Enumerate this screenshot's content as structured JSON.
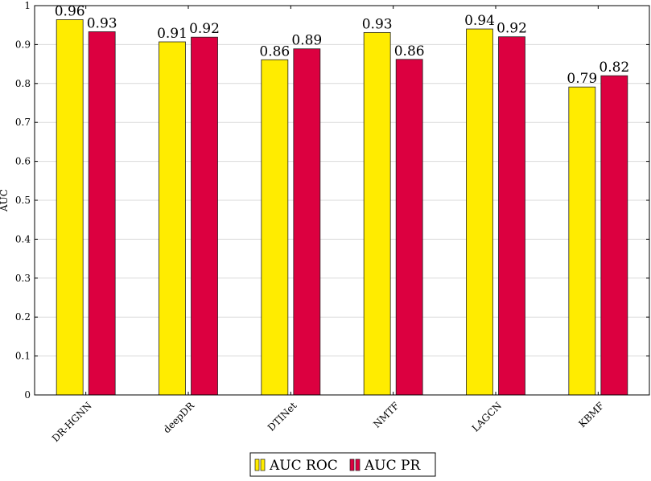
{
  "chart_data": {
    "type": "bar",
    "ylabel": "AUC",
    "ylim": [
      0,
      1
    ],
    "yticks": [
      "0",
      "0.1",
      "0.2",
      "0.3",
      "0.4",
      "0.5",
      "0.6",
      "0.7",
      "0.8",
      "0.9",
      "1"
    ],
    "grid": true,
    "legend_position": "bottom-center",
    "categories": [
      "DR-HGNN",
      "deepDR",
      "DTINet",
      "NMTF",
      "LAGCN",
      "KBMF"
    ],
    "series": [
      {
        "name": "AUC ROC",
        "color": "#ffec00",
        "values": [
          0.964,
          0.907,
          0.861,
          0.931,
          0.94,
          0.791
        ],
        "labels": [
          "0.96",
          "0.91",
          "0.86",
          "0.93",
          "0.94",
          "0.79"
        ]
      },
      {
        "name": "AUC PR",
        "color": "#dc0040",
        "values": [
          0.933,
          0.919,
          0.889,
          0.862,
          0.92,
          0.82
        ],
        "labels": [
          "0.93",
          "0.92",
          "0.89",
          "0.86",
          "0.92",
          "0.82"
        ]
      }
    ]
  }
}
